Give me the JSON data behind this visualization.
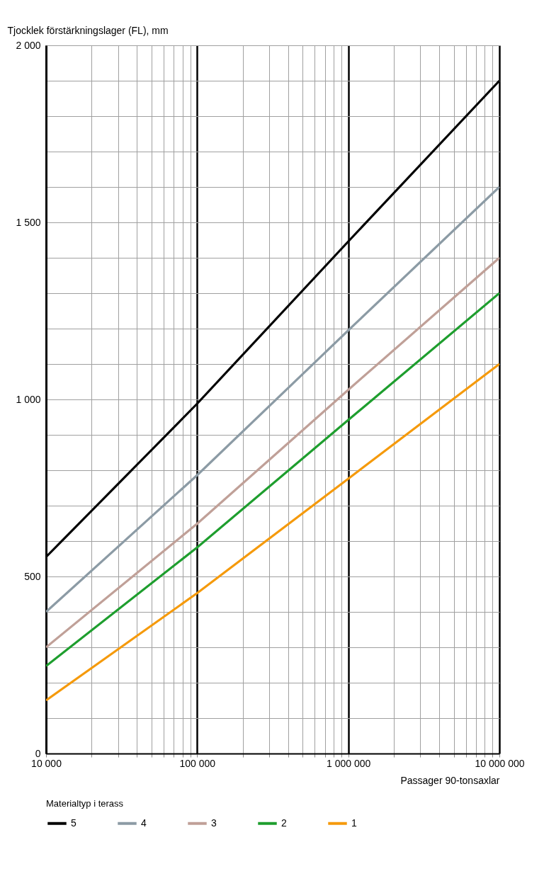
{
  "chart_data": {
    "type": "line",
    "xlabel": "Passager 90-tonsaxlar",
    "ylabel": "Tjocklek förstärkningslager (FL), mm",
    "legend_title": "Materialtyp i terass",
    "x": [
      10000,
      100000,
      1000000,
      10000000
    ],
    "series": [
      {
        "name": "5",
        "color": "#000000",
        "values": [
          555,
          988,
          1446,
          1900
        ]
      },
      {
        "name": "4",
        "color": "#8c9ba5",
        "values": [
          400,
          786,
          1195,
          1600
        ]
      },
      {
        "name": "3",
        "color": "#c0a098",
        "values": [
          300,
          649,
          1027,
          1400
        ]
      },
      {
        "name": "2",
        "color": "#1e9e2e",
        "values": [
          247,
          582,
          942,
          1300
        ]
      },
      {
        "name": "1",
        "color": "#f59a0c",
        "values": [
          150,
          453,
          776,
          1100
        ]
      }
    ],
    "log": "x",
    "xlim": [
      10000,
      10000000
    ],
    "ylim": [
      0,
      2000
    ],
    "xticks": [
      {
        "value": 10000,
        "label": "10 000"
      },
      {
        "value": 20000,
        "label": null
      },
      {
        "value": 30000,
        "label": null
      },
      {
        "value": 40000,
        "label": null
      },
      {
        "value": 50000,
        "label": null
      },
      {
        "value": 60000,
        "label": null
      },
      {
        "value": 70000,
        "label": null
      },
      {
        "value": 80000,
        "label": null
      },
      {
        "value": 90000,
        "label": null
      },
      {
        "value": 100000,
        "label": "100 000"
      },
      {
        "value": 200000,
        "label": null
      },
      {
        "value": 300000,
        "label": null
      },
      {
        "value": 400000,
        "label": null
      },
      {
        "value": 500000,
        "label": null
      },
      {
        "value": 600000,
        "label": null
      },
      {
        "value": 700000,
        "label": null
      },
      {
        "value": 800000,
        "label": null
      },
      {
        "value": 900000,
        "label": null
      },
      {
        "value": 1000000,
        "label": "1 000 000"
      },
      {
        "value": 2000000,
        "label": null
      },
      {
        "value": 3000000,
        "label": null
      },
      {
        "value": 4000000,
        "label": null
      },
      {
        "value": 5000000,
        "label": null
      },
      {
        "value": 6000000,
        "label": null
      },
      {
        "value": 7000000,
        "label": null
      },
      {
        "value": 8000000,
        "label": null
      },
      {
        "value": 9000000,
        "label": null
      },
      {
        "value": 10000000,
        "label": "10 000 000"
      }
    ],
    "yticks": [
      0,
      {
        "value": 100,
        "label": null
      },
      {
        "value": 200,
        "label": null
      },
      {
        "value": 300,
        "label": null
      },
      {
        "value": 400,
        "label": null
      },
      500,
      {
        "value": 600,
        "label": null
      },
      {
        "value": 700,
        "label": null
      },
      {
        "value": 800,
        "label": null
      },
      {
        "value": 900,
        "label": null
      },
      {
        "value": 1000,
        "label": "1 000"
      },
      {
        "value": 1100,
        "label": null
      },
      {
        "value": 1200,
        "label": null
      },
      {
        "value": 1300,
        "label": null
      },
      {
        "value": 1400,
        "label": null
      },
      {
        "value": 1500,
        "label": "1 500"
      },
      {
        "value": 1600,
        "label": null
      },
      {
        "value": 1700,
        "label": null
      },
      {
        "value": 1800,
        "label": null
      },
      {
        "value": 1900,
        "label": null
      },
      {
        "value": 2000,
        "label": "2 000"
      }
    ],
    "grid": true,
    "legend": "bottom",
    "marker": "none",
    "line_style": "solid"
  }
}
